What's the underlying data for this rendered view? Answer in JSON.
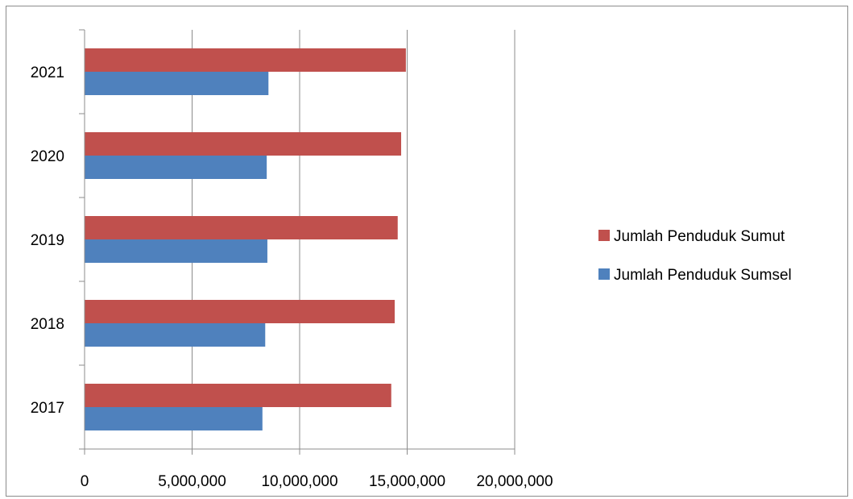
{
  "chart_data": {
    "type": "bar",
    "orientation": "horizontal",
    "categories": [
      "2017",
      "2018",
      "2019",
      "2020",
      "2021"
    ],
    "series": [
      {
        "name": "Jumlah Penduduk Sumsel",
        "color": "#4f81bd",
        "values": [
          8270000,
          8400000,
          8500000,
          8470000,
          8550000
        ]
      },
      {
        "name": "Jumlah Penduduk Sumut",
        "color": "#c0504d",
        "values": [
          14260000,
          14420000,
          14560000,
          14720000,
          14940000
        ]
      }
    ],
    "xlim": [
      0,
      20000000
    ],
    "x_ticks": [
      "0",
      "5,000,000",
      "10,000,000",
      "15,000,000",
      "20,000,000"
    ],
    "x_tick_values": [
      0,
      5000000,
      10000000,
      15000000,
      20000000
    ],
    "grid": "vertical",
    "legend_position": "right",
    "title": "",
    "xlabel": "",
    "ylabel": ""
  }
}
